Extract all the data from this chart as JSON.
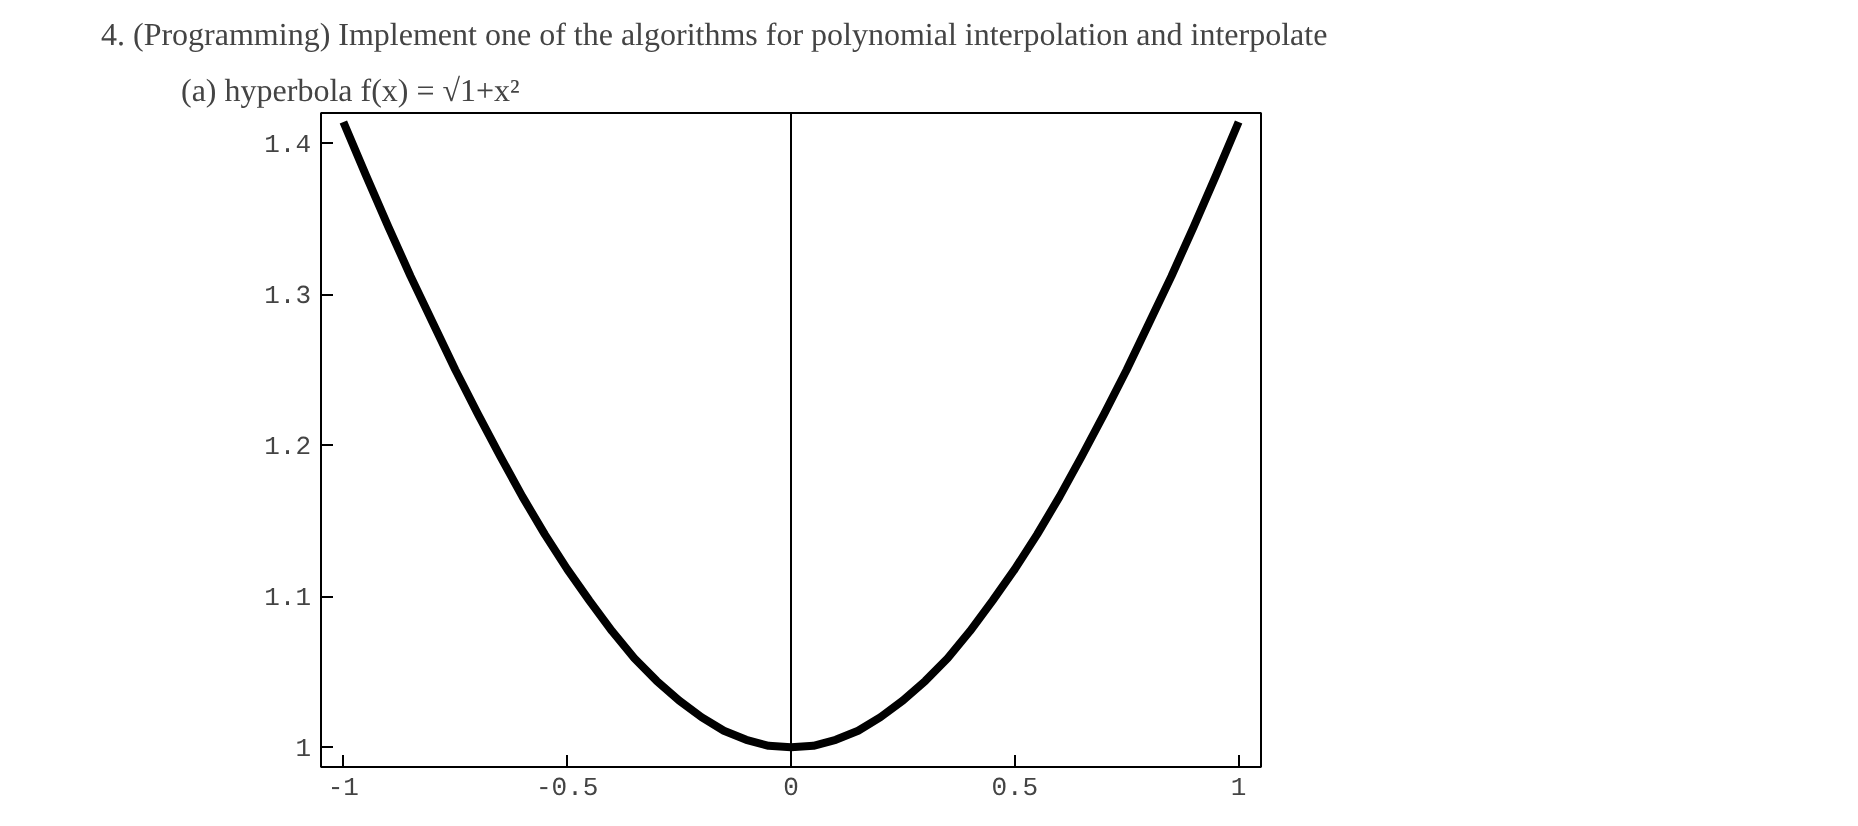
{
  "chart_data": {
    "type": "line",
    "title": "4. (Programming) Implement one of the algorithms for polynomial interpolation and interpolate",
    "subtitle": "(a) hyperbola f(x) = √1+x²",
    "x": [
      -1,
      -0.95,
      -0.9,
      -0.85,
      -0.8,
      -0.75,
      -0.7,
      -0.65,
      -0.6,
      -0.55,
      -0.5,
      -0.45,
      -0.4,
      -0.35,
      -0.3,
      -0.25,
      -0.2,
      -0.15,
      -0.1,
      -0.05,
      0,
      0.05,
      0.1,
      0.15,
      0.2,
      0.25,
      0.3,
      0.35,
      0.4,
      0.45,
      0.5,
      0.55,
      0.6,
      0.65,
      0.7,
      0.75,
      0.8,
      0.85,
      0.9,
      0.95,
      1
    ],
    "series": [
      {
        "color": "#000000",
        "values": [
          1.414,
          1.379,
          1.345,
          1.312,
          1.281,
          1.25,
          1.221,
          1.193,
          1.166,
          1.141,
          1.118,
          1.097,
          1.077,
          1.059,
          1.044,
          1.031,
          1.02,
          1.011,
          1.005,
          1.001,
          1.0,
          1.001,
          1.005,
          1.011,
          1.02,
          1.031,
          1.044,
          1.059,
          1.077,
          1.097,
          1.118,
          1.141,
          1.166,
          1.193,
          1.221,
          1.25,
          1.281,
          1.312,
          1.345,
          1.379,
          1.414
        ]
      }
    ],
    "xlim": [
      -1.05,
      1.05
    ],
    "ylim": [
      0.987,
      1.42
    ],
    "xticks": [
      {
        "value": -1,
        "label": "-1"
      },
      {
        "value": -0.5,
        "label": "-0.5"
      },
      0,
      0.5,
      1
    ],
    "yticks": [
      1,
      1.1,
      1.2,
      1.3,
      1.4
    ],
    "ref_lines": [
      {
        "axis": "x",
        "value": 0,
        "color": "#000000"
      }
    ],
    "grid": false,
    "marker": "none",
    "line_style": "solid"
  }
}
